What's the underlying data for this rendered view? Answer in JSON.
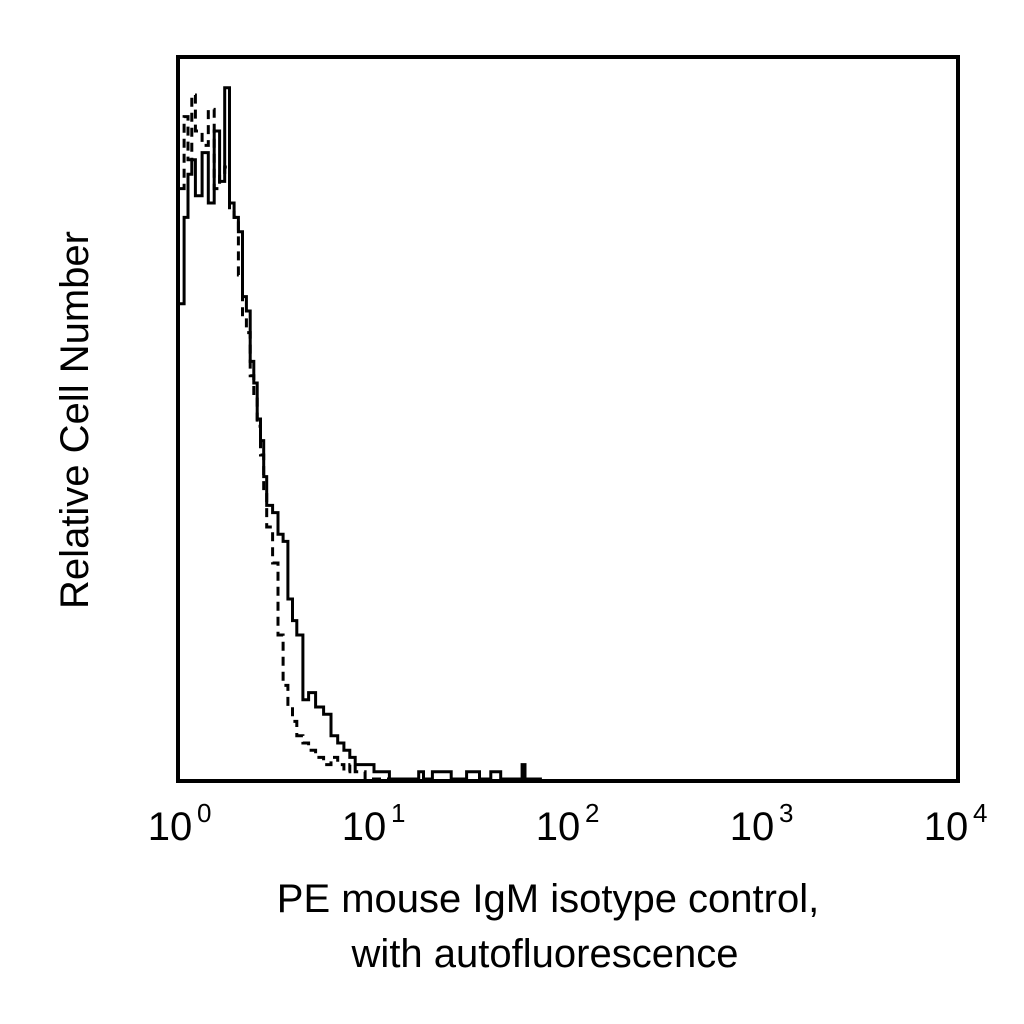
{
  "chart_data": {
    "type": "line",
    "title": "",
    "xlabel": [
      "PE mouse IgM isotype control,",
      "with autofluorescence"
    ],
    "ylabel": "Relative Cell Number",
    "x_scale": "log",
    "xlim": [
      1,
      10000
    ],
    "ylim": [
      0,
      100
    ],
    "grid": false,
    "legend": "none",
    "x_ticks": [
      {
        "base": "10",
        "exp": "0"
      },
      {
        "base": "10",
        "exp": "1"
      },
      {
        "base": "10",
        "exp": "2"
      },
      {
        "base": "10",
        "exp": "3"
      },
      {
        "base": "10",
        "exp": "4"
      }
    ],
    "series": [
      {
        "style": "solid",
        "color": "#000000",
        "x": [
          1.0,
          1.05,
          1.1,
          1.15,
          1.2,
          1.3,
          1.4,
          1.5,
          1.6,
          1.7,
          1.8,
          1.9,
          2.0,
          2.1,
          2.2,
          2.3,
          2.4,
          2.5,
          2.6,
          2.7,
          2.8,
          3.0,
          3.2,
          3.4,
          3.6,
          3.8,
          4.0,
          4.3,
          4.6,
          5.0,
          5.5,
          6.0,
          6.5,
          7.0,
          7.5,
          8.0,
          8.5,
          9.0,
          10,
          12,
          15,
          17,
          18,
          20,
          25,
          30,
          35,
          40,
          45,
          50,
          55,
          58,
          60,
          65,
          70
        ],
        "y": [
          66,
          78,
          84,
          86,
          81,
          87,
          80,
          90,
          83,
          96,
          80,
          78,
          76,
          67,
          65,
          58,
          55,
          50,
          47,
          42,
          38,
          37,
          34,
          33,
          25,
          22,
          20,
          11,
          12,
          10,
          9,
          6,
          5,
          4,
          3,
          2,
          2,
          2,
          1,
          0,
          0,
          1,
          0,
          1,
          0,
          1,
          0,
          1,
          0,
          0,
          0,
          2,
          0,
          0,
          0
        ]
      },
      {
        "style": "dashed",
        "color": "#000000",
        "x": [
          1.0,
          1.05,
          1.1,
          1.15,
          1.2,
          1.3,
          1.4,
          1.5,
          1.6,
          1.7,
          1.8,
          1.9,
          2.0,
          2.1,
          2.2,
          2.3,
          2.4,
          2.5,
          2.6,
          2.7,
          2.8,
          3.0,
          3.2,
          3.4,
          3.6,
          3.8,
          4.0,
          4.3,
          4.6,
          5.0,
          5.5,
          6.0,
          6.5,
          7.0,
          7.5,
          8.0,
          8.5,
          9.0,
          10,
          15
        ],
        "y": [
          82,
          92,
          86,
          95,
          90,
          88,
          93,
          82,
          84,
          85,
          79,
          78,
          70,
          64,
          62,
          56,
          53,
          49,
          45,
          40,
          35,
          30,
          20,
          13,
          10,
          8,
          6,
          5,
          4,
          3,
          2,
          3,
          2,
          1,
          2,
          1,
          1,
          0,
          0,
          0
        ]
      }
    ]
  }
}
